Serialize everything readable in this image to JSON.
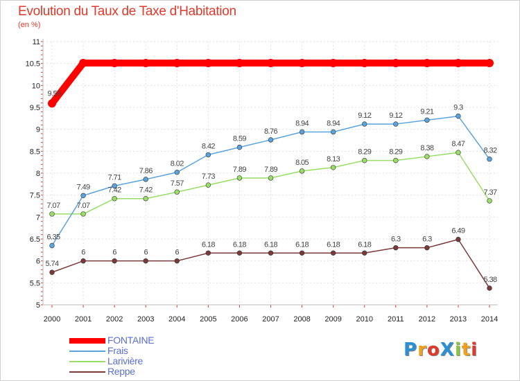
{
  "header": {
    "title": "Evolution du Taux de Taxe d'Habitation",
    "subtitle": "(en %)"
  },
  "logo": {
    "text": "ProXiti",
    "colors": [
      "#2b8fd6",
      "#f0a01c",
      "#e0392b",
      "#2b8fd6",
      "#8cc63f",
      "#f0a01c",
      "#e0392b"
    ]
  },
  "chart_data": {
    "type": "line",
    "title": "Evolution du Taux de Taxe d'Habitation",
    "subtitle": "(en %)",
    "x": [
      2000,
      2001,
      2002,
      2003,
      2004,
      2005,
      2006,
      2007,
      2008,
      2009,
      2010,
      2011,
      2012,
      2013,
      2014
    ],
    "ylim": [
      5,
      11
    ],
    "yticks": [
      5,
      5.5,
      6,
      6.5,
      7,
      7.5,
      8,
      8.5,
      9,
      9.5,
      10,
      10.5,
      11
    ],
    "ytick_labels": [
      "5",
      "5.5",
      "6",
      "6.5",
      "7",
      "7.5",
      "8",
      "8.5",
      "9",
      "9.5",
      "10",
      "10.5",
      "11"
    ],
    "grid": true,
    "legend_position": "bottom-left",
    "series": [
      {
        "name": "FONTAINE",
        "color": "#ff0000",
        "values": [
          9.59,
          10.51,
          10.51,
          10.51,
          10.51,
          10.51,
          10.51,
          10.51,
          10.51,
          10.51,
          10.51,
          10.51,
          10.51,
          10.51,
          10.51
        ],
        "labels": [
          "9.59",
          "10.51",
          "10.51",
          "10.51",
          "10.51",
          "10.51",
          "10.51",
          "10.51",
          "10.51",
          "10.51",
          "10.51",
          "10.51",
          "10.51",
          "10.51",
          "10.51"
        ]
      },
      {
        "name": "Frais",
        "color": "#5ba3dc",
        "values": [
          6.35,
          7.49,
          7.71,
          7.86,
          8.02,
          8.42,
          8.59,
          8.76,
          8.94,
          8.94,
          9.12,
          9.12,
          9.21,
          9.3,
          8.32
        ],
        "labels": [
          "6.35",
          "7.49",
          "7.71",
          "7.86",
          "8.02",
          "8.42",
          "8.59",
          "8.76",
          "8.94",
          "8.94",
          "9.12",
          "9.12",
          "9.21",
          "9.3",
          "8.32"
        ]
      },
      {
        "name": "Larivière",
        "color": "#99dd66",
        "values": [
          7.07,
          7.07,
          7.42,
          7.42,
          7.57,
          7.73,
          7.89,
          7.89,
          8.05,
          8.13,
          8.29,
          8.29,
          8.38,
          8.47,
          7.37
        ],
        "labels": [
          "7.07",
          "7.07",
          "7.42",
          "7.42",
          "7.57",
          "7.73",
          "7.89",
          "7.89",
          "8.05",
          "8.13",
          "8.29",
          "8.29",
          "8.38",
          "8.47",
          "7.37"
        ]
      },
      {
        "name": "Reppe",
        "color": "#7a3a3a",
        "values": [
          5.74,
          6,
          6,
          6,
          6,
          6.18,
          6.18,
          6.18,
          6.18,
          6.18,
          6.18,
          6.3,
          6.3,
          6.49,
          5.38
        ],
        "labels": [
          "5.74",
          "6",
          "6",
          "6",
          "6",
          "6.18",
          "6.18",
          "6.18",
          "6.18",
          "6.18",
          "6.18",
          "6.3",
          "6.3",
          "6.49",
          "5.38"
        ]
      }
    ]
  },
  "legend": {
    "items": [
      {
        "label": "FONTAINE",
        "color": "#ff0000"
      },
      {
        "label": "Frais",
        "color": "#5ba3dc"
      },
      {
        "label": "Larivière",
        "color": "#99dd66"
      },
      {
        "label": "Reppe",
        "color": "#7a3a3a"
      }
    ]
  }
}
